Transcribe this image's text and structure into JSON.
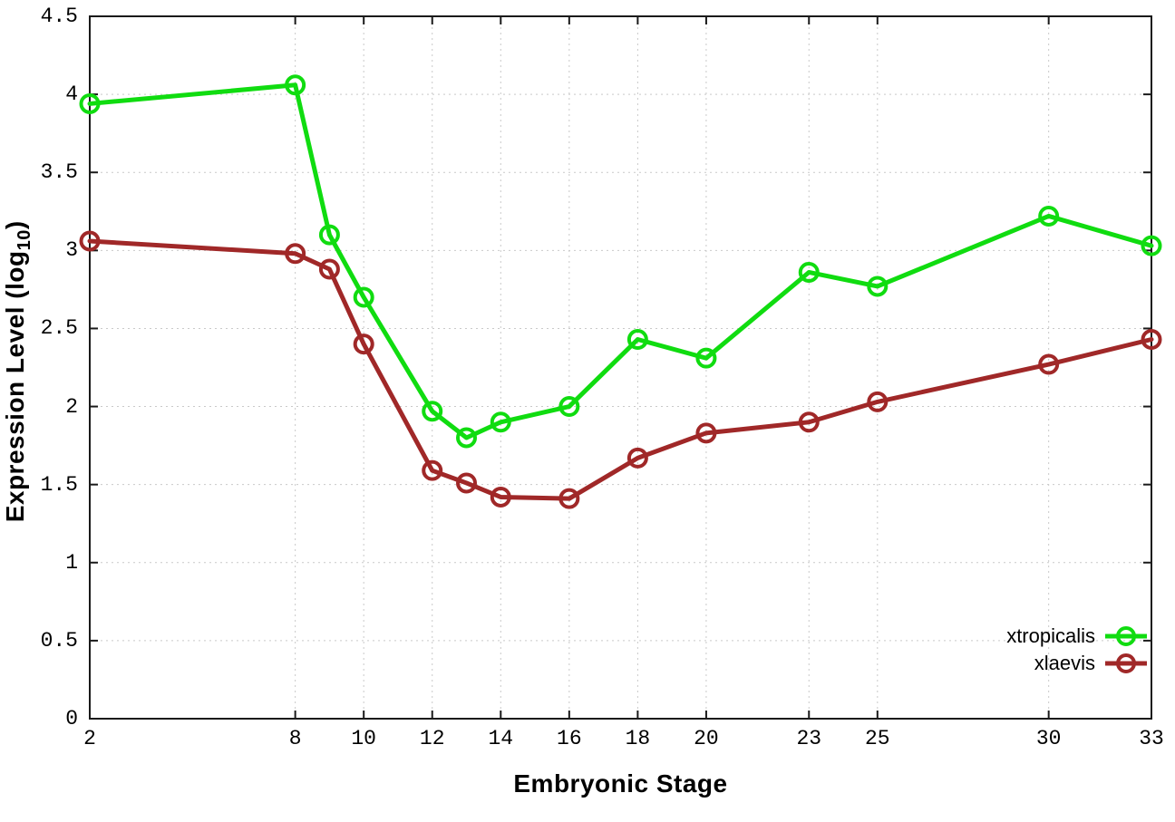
{
  "figure": {
    "xlabel": "Embryonic Stage",
    "ylabel_prefix": "Expression Level (log",
    "ylabel_sub": "10",
    "ylabel_suffix": ")"
  },
  "chart_data": {
    "type": "line",
    "title": "",
    "xlabel": "Embryonic Stage",
    "ylabel": "Expression Level (log10)",
    "x": [
      2,
      8,
      9,
      10,
      12,
      13,
      14,
      16,
      18,
      20,
      23,
      25,
      30,
      33
    ],
    "series": [
      {
        "name": "xtropicalis",
        "color": "#10dc10",
        "values": [
          3.94,
          4.06,
          3.1,
          2.7,
          1.97,
          1.8,
          1.9,
          2.0,
          2.43,
          2.31,
          2.86,
          2.77,
          3.22,
          3.03
        ]
      },
      {
        "name": "xlaevis",
        "color": "#a02828",
        "values": [
          3.06,
          2.98,
          2.88,
          2.4,
          1.59,
          1.51,
          1.42,
          1.41,
          1.67,
          1.83,
          1.9,
          2.03,
          2.27,
          2.43
        ]
      }
    ],
    "xtick_values": [
      2,
      8,
      10,
      12,
      14,
      16,
      18,
      20,
      23,
      25,
      30,
      33
    ],
    "xtick_labels": [
      "2",
      "8",
      "10",
      "12",
      "14",
      "16",
      "18",
      "20",
      "23",
      "25",
      "30",
      "33"
    ],
    "ytick_values": [
      0,
      0.5,
      1,
      1.5,
      2,
      2.5,
      3,
      3.5,
      4,
      4.5
    ],
    "ytick_labels": [
      "0",
      "0.5",
      "1",
      "1.5",
      "2",
      "2.5",
      "3",
      "3.5",
      "4",
      "4.5"
    ],
    "xlim": [
      2,
      33
    ],
    "ylim": [
      0,
      4.5
    ],
    "grid": true,
    "legend_position": "bottom-right-inside",
    "marker": "open-circle",
    "colors": {
      "border": "#1a1a1a",
      "grid": "#c9c9c9"
    }
  }
}
